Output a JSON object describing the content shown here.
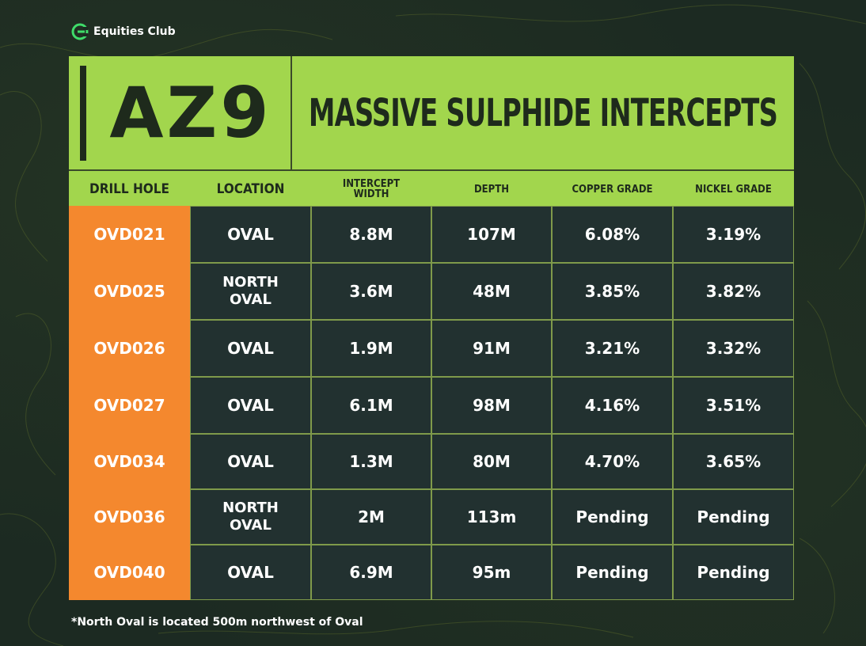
{
  "brand": {
    "name": "Equities Club",
    "icon": "equities-club-logo-icon"
  },
  "title": {
    "code": "AZ9",
    "text": "MASSIVE SULPHIDE INTERCEPTS"
  },
  "table": {
    "headers": [
      "DRILL HOLE",
      "LOCATION",
      "INTERCEPT\nWIDTH",
      "DEPTH",
      "COPPER GRADE",
      "NICKEL GRADE"
    ],
    "rows": [
      [
        "OVD021",
        "OVAL",
        "8.8M",
        "107M",
        "6.08%",
        "3.19%"
      ],
      [
        "OVD025",
        "NORTH\nOVAL",
        "3.6M",
        "48M",
        "3.85%",
        "3.82%"
      ],
      [
        "OVD026",
        "OVAL",
        "1.9M",
        "91M",
        "3.21%",
        "3.32%"
      ],
      [
        "OVD027",
        "OVAL",
        "6.1M",
        "98M",
        "4.16%",
        "3.51%"
      ],
      [
        "OVD034",
        "OVAL",
        "1.3M",
        "80M",
        "4.70%",
        "3.65%"
      ],
      [
        "OVD036",
        "NORTH\nOVAL",
        "2M",
        "113m",
        "Pending",
        "Pending"
      ],
      [
        "OVD040",
        "OVAL",
        "6.9M",
        "95m",
        "Pending",
        "Pending"
      ]
    ]
  },
  "footnote": "*North Oval is located 500m northwest of Oval",
  "colors": {
    "accent_green": "#a2d64d",
    "accent_orange": "#f4882e",
    "cell_dark": "#223130",
    "background": "#1c2a22"
  }
}
